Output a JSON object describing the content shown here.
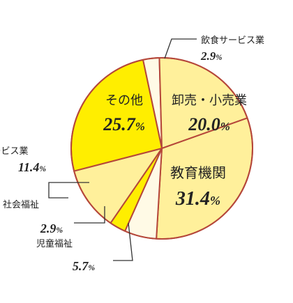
{
  "chart_data": {
    "type": "pie",
    "start_angle_deg": -12,
    "colors": {
      "outline": "#b5473a",
      "yellow": "#ffee00",
      "light_yellow": "#fff09b",
      "cream": "#fffae6",
      "leader": "#333333"
    },
    "slices": [
      {
        "label": "飲食サービス業",
        "value": 2.9,
        "value_text": "2.9",
        "unit": "%",
        "color": "#fffae6"
      },
      {
        "label": "卸売・小売業",
        "value": 20.0,
        "value_text": "20.0",
        "unit": "%",
        "color": "#fff09b"
      },
      {
        "label": "教育機関",
        "value": 31.4,
        "value_text": "31.4",
        "unit": "%",
        "color": "#fff09b"
      },
      {
        "label": "児童福祉",
        "value": 5.7,
        "value_text": "5.7",
        "unit": "%",
        "color": "#fffae6"
      },
      {
        "label": "社会福祉",
        "value": 2.9,
        "value_text": "2.9",
        "unit": "%",
        "color": "#ffee00"
      },
      {
        "label": "サービス業",
        "value": 11.4,
        "value_text": "11.4",
        "unit": "%",
        "color": "#fff09b"
      },
      {
        "label": "その他",
        "value": 25.7,
        "value_text": "25.7",
        "unit": "%",
        "color": "#ffee00"
      }
    ]
  }
}
